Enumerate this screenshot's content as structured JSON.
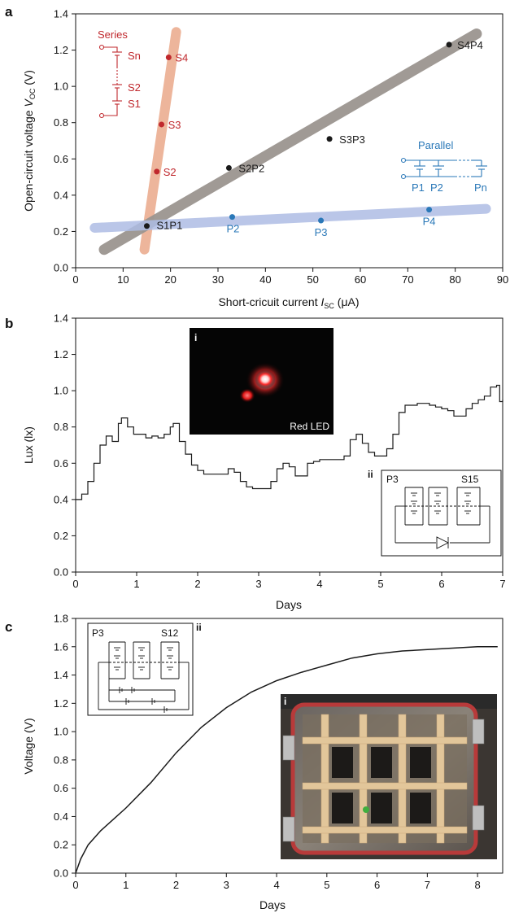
{
  "colors": {
    "series": "#c0282d",
    "parallel": "#2a78b8",
    "black": "#1a1a1a",
    "band_series": "#eaa98a",
    "band_all": "#9b9590",
    "band_parallel": "#aebde4"
  },
  "chart_data": [
    {
      "panel": "a",
      "type": "scatter",
      "xlabel_prefix": "Short-cricuit current ",
      "xlabel_symbol": "I",
      "xlabel_sub": "SC",
      "xlabel_suffix": " (μA)",
      "ylabel_prefix": "Open-circuit voltage ",
      "ylabel_symbol": "V",
      "ylabel_sub": "OC",
      "ylabel_suffix": " (V)",
      "xlim": [
        0,
        90
      ],
      "ylim": [
        0,
        1.4
      ],
      "xticks": [
        0,
        10,
        20,
        30,
        40,
        50,
        60,
        70,
        80,
        90
      ],
      "yticks": [
        0.0,
        0.2,
        0.4,
        0.6,
        0.8,
        1.0,
        1.2,
        1.4
      ],
      "xtick_labels": [
        "0",
        "10",
        "20",
        "30",
        "40",
        "50",
        "60",
        "70",
        "80",
        "90"
      ],
      "ytick_labels": [
        "0.0",
        "0.2",
        "0.4",
        "0.6",
        "0.8",
        "1.0",
        "1.2",
        "1.4"
      ],
      "series": [
        {
          "group": "series",
          "points": [
            {
              "label": "S2",
              "x": 17.1,
              "y": 0.53
            },
            {
              "label": "S3",
              "x": 18.1,
              "y": 0.79
            },
            {
              "label": "S4",
              "x": 19.6,
              "y": 1.16
            }
          ]
        },
        {
          "group": "all",
          "points": [
            {
              "label": "S1P1",
              "x": 15.0,
              "y": 0.23
            },
            {
              "label": "S2P2",
              "x": 32.3,
              "y": 0.55
            },
            {
              "label": "S3P3",
              "x": 53.5,
              "y": 0.71
            },
            {
              "label": "S4P4",
              "x": 78.7,
              "y": 1.23
            }
          ]
        },
        {
          "group": "parallel",
          "points": [
            {
              "label": "P2",
              "x": 33.0,
              "y": 0.28
            },
            {
              "label": "P3",
              "x": 51.7,
              "y": 0.26
            },
            {
              "label": "P4",
              "x": 74.5,
              "y": 0.32
            }
          ]
        }
      ],
      "trend_bands": [
        {
          "group": "series",
          "x": [
            14.5,
            21.2
          ],
          "y": [
            0.1,
            1.3
          ]
        },
        {
          "group": "all",
          "x": [
            6.0,
            84.5
          ],
          "y": [
            0.1,
            1.29
          ]
        },
        {
          "group": "parallel",
          "x": [
            4.0,
            86.5
          ],
          "y": [
            0.22,
            0.325
          ]
        }
      ],
      "inset_series": {
        "title": "Series",
        "labels": [
          "Sn",
          "S2",
          "S1"
        ]
      },
      "inset_parallel": {
        "title": "Parallel",
        "labels": [
          "P1",
          "P2",
          "Pn"
        ]
      }
    },
    {
      "panel": "b",
      "type": "line",
      "xlabel": "Days",
      "ylabel": "Lux (lx)",
      "xlim": [
        0,
        7
      ],
      "ylim": [
        0,
        1.4
      ],
      "xticks": [
        0,
        1,
        2,
        3,
        4,
        5,
        6,
        7
      ],
      "yticks": [
        0.0,
        0.2,
        0.4,
        0.6,
        0.8,
        1.0,
        1.2,
        1.4
      ],
      "xtick_labels": [
        "0",
        "1",
        "2",
        "3",
        "4",
        "5",
        "6",
        "7"
      ],
      "ytick_labels": [
        "0.0",
        "0.2",
        "0.4",
        "0.6",
        "0.8",
        "1.0",
        "1.2",
        "1.4"
      ],
      "x": [
        0,
        0.1,
        0.2,
        0.3,
        0.4,
        0.5,
        0.6,
        0.7,
        0.75,
        0.85,
        0.95,
        1.05,
        1.15,
        1.25,
        1.35,
        1.45,
        1.55,
        1.6,
        1.7,
        1.8,
        1.9,
        2.0,
        2.1,
        2.2,
        2.3,
        2.4,
        2.5,
        2.6,
        2.7,
        2.8,
        2.9,
        3.0,
        3.1,
        3.2,
        3.3,
        3.4,
        3.5,
        3.6,
        3.7,
        3.8,
        3.9,
        4.0,
        4.1,
        4.2,
        4.3,
        4.4,
        4.5,
        4.6,
        4.7,
        4.8,
        4.9,
        5.0,
        5.1,
        5.2,
        5.3,
        5.4,
        5.5,
        5.6,
        5.7,
        5.8,
        5.9,
        6.0,
        6.1,
        6.2,
        6.3,
        6.4,
        6.5,
        6.6,
        6.7,
        6.8,
        6.9,
        6.95,
        7.0
      ],
      "y": [
        0.4,
        0.43,
        0.5,
        0.6,
        0.7,
        0.75,
        0.72,
        0.82,
        0.85,
        0.8,
        0.76,
        0.76,
        0.74,
        0.75,
        0.74,
        0.76,
        0.8,
        0.82,
        0.72,
        0.65,
        0.59,
        0.56,
        0.54,
        0.54,
        0.54,
        0.54,
        0.57,
        0.55,
        0.5,
        0.47,
        0.46,
        0.46,
        0.46,
        0.5,
        0.57,
        0.6,
        0.58,
        0.53,
        0.53,
        0.6,
        0.61,
        0.62,
        0.62,
        0.62,
        0.62,
        0.64,
        0.73,
        0.76,
        0.71,
        0.66,
        0.64,
        0.64,
        0.68,
        0.76,
        0.88,
        0.92,
        0.92,
        0.93,
        0.93,
        0.92,
        0.91,
        0.9,
        0.89,
        0.86,
        0.86,
        0.9,
        0.93,
        0.95,
        0.97,
        1.02,
        1.03,
        0.94,
        0.95
      ],
      "inset_photo": {
        "tag": "i",
        "caption": "Red LED"
      },
      "inset_circuit": {
        "tag": "ii",
        "left_label": "P3",
        "right_label": "S15"
      }
    },
    {
      "panel": "c",
      "type": "line",
      "xlabel": "Days",
      "ylabel": "Voltage (V)",
      "xlim": [
        0,
        8.5
      ],
      "ylim": [
        0,
        1.8
      ],
      "xticks": [
        0,
        1,
        2,
        3,
        4,
        5,
        6,
        7,
        8
      ],
      "yticks": [
        0.0,
        0.2,
        0.4,
        0.6,
        0.8,
        1.0,
        1.2,
        1.4,
        1.6,
        1.8
      ],
      "xtick_labels": [
        "0",
        "1",
        "2",
        "3",
        "4",
        "5",
        "6",
        "7",
        "8"
      ],
      "ytick_labels": [
        "0.0",
        "0.2",
        "0.4",
        "0.6",
        "0.8",
        "1.0",
        "1.2",
        "1.4",
        "1.6",
        "1.8"
      ],
      "x": [
        0,
        0.1,
        0.25,
        0.5,
        0.75,
        1.0,
        1.5,
        2.0,
        2.5,
        3.0,
        3.5,
        4.0,
        4.5,
        5.0,
        5.5,
        6.0,
        6.5,
        7.0,
        7.5,
        8.0,
        8.4
      ],
      "y": [
        0.0,
        0.1,
        0.2,
        0.3,
        0.38,
        0.46,
        0.64,
        0.85,
        1.03,
        1.17,
        1.28,
        1.36,
        1.42,
        1.47,
        1.52,
        1.55,
        1.57,
        1.58,
        1.59,
        1.6,
        1.6
      ],
      "inset_circuit": {
        "tag": "ii",
        "left_label": "P3",
        "right_label": "S12"
      },
      "inset_photo": {
        "tag": "i"
      }
    }
  ],
  "panel_labels": [
    "a",
    "b",
    "c"
  ]
}
